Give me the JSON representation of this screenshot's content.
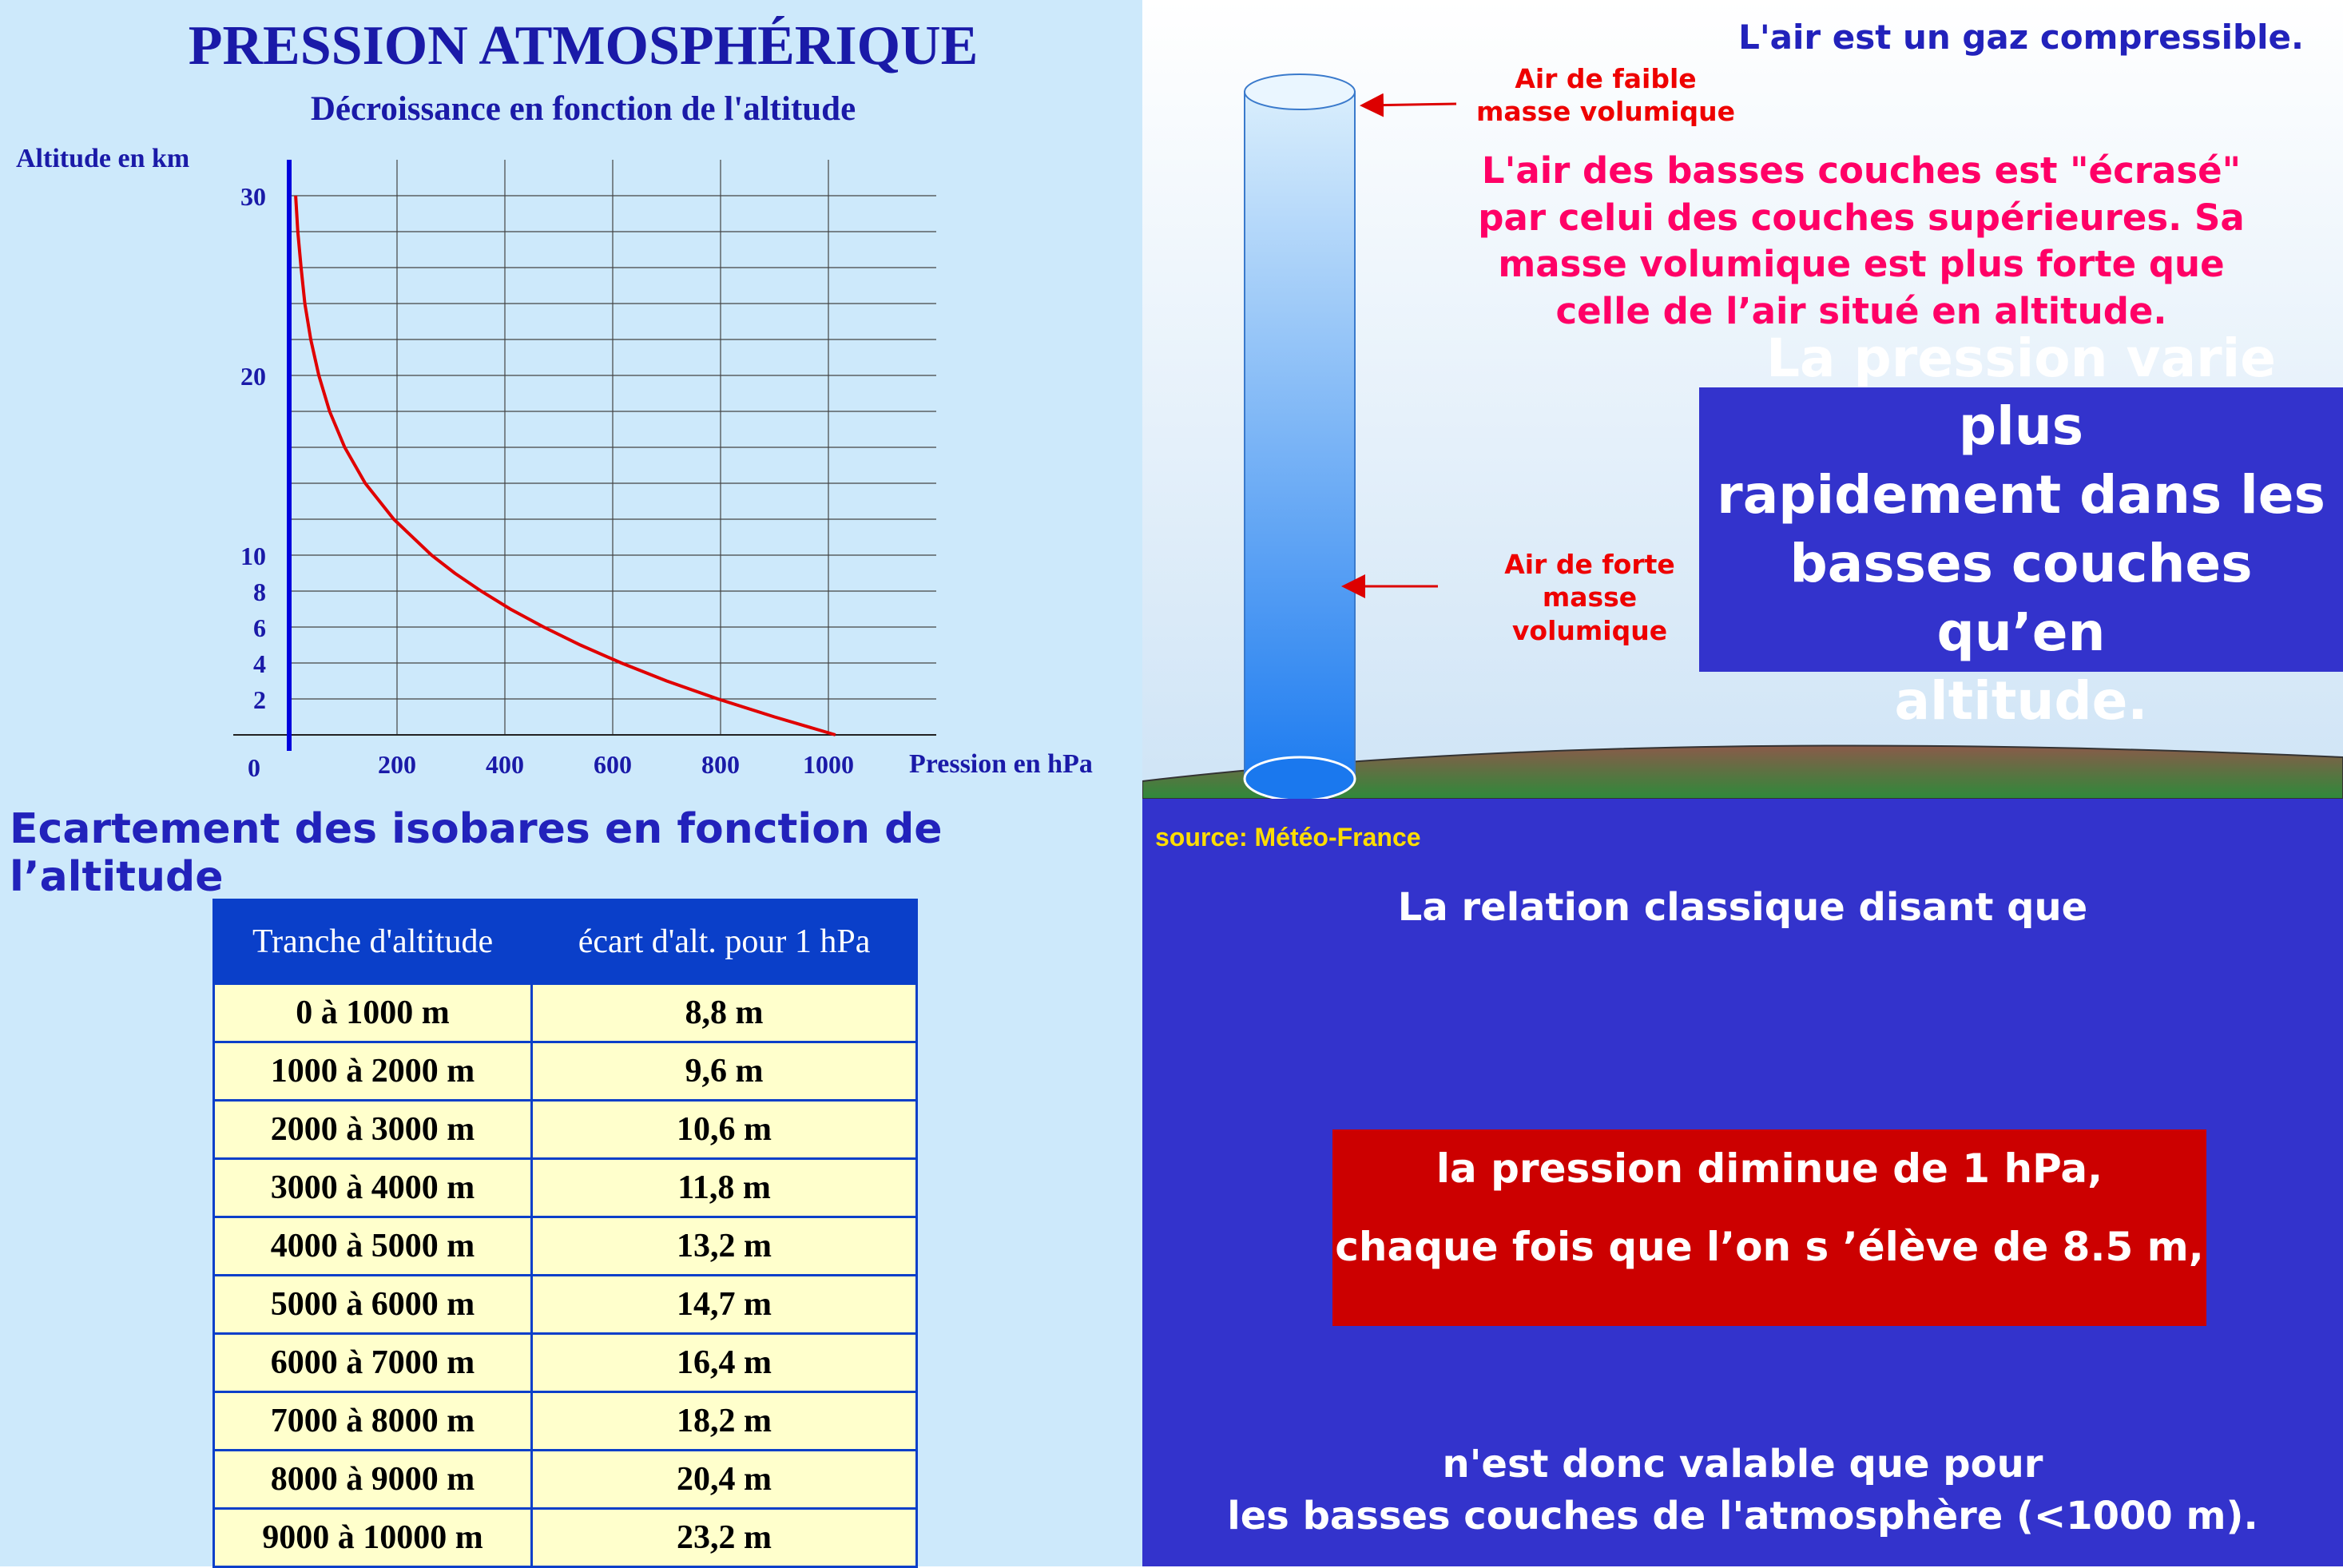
{
  "chart_header": {
    "title": "PRESSION ATMOSPHÉRIQUE",
    "subtitle": "Décroissance en fonction de l'altitude"
  },
  "chart_data": {
    "type": "line",
    "title": "Décroissance en fonction de l'altitude",
    "xlabel": "Pression en hPa",
    "ylabel": "Altitude en km",
    "xlim": [
      0,
      1200
    ],
    "ylim": [
      0,
      30
    ],
    "x_ticks": [
      "200",
      "400",
      "600",
      "800",
      "1000"
    ],
    "y_ticks": [
      "2",
      "4",
      "6",
      "8",
      "10",
      "20",
      "30"
    ],
    "origin_label": "0",
    "grid": true,
    "curve_color": "#e00000",
    "series": [
      {
        "x": [
          1013,
          900,
          795,
          700,
          616,
          540,
          472,
          410,
          356,
          307,
          264,
          194,
          141,
          103,
          75,
          55,
          40,
          29,
          22,
          16,
          12
        ],
        "y": [
          0,
          1,
          2,
          3,
          4,
          5,
          6,
          7,
          8,
          9,
          10,
          12,
          14,
          16,
          18,
          20,
          22,
          24,
          26,
          28,
          30
        ]
      }
    ]
  },
  "compressible": {
    "heading": "L'air est un gaz compressible.",
    "label_top": [
      "Air de faible",
      "masse volumique"
    ],
    "label_bottom": [
      "Air de forte",
      "masse",
      "volumique"
    ],
    "explanation": [
      "L'air des basses couches est \"écrasé\"",
      "par celui des couches supérieures. Sa",
      "masse  volumique est plus forte que",
      "celle de l’air situé en altitude."
    ],
    "box": [
      "La pression varie plus",
      "rapidement dans les",
      "basses couches qu’en",
      "altitude."
    ]
  },
  "isobars": {
    "title": "Ecartement des isobares en fonction de l’altitude",
    "headers": [
      "Tranche d'altitude",
      "écart d'alt. pour 1 hPa"
    ],
    "rows": [
      [
        "0 à 1000 m",
        "8,8 m"
      ],
      [
        "1000 à 2000 m",
        "9,6 m"
      ],
      [
        "2000 à 3000 m",
        "10,6 m"
      ],
      [
        "3000 à 4000 m",
        "11,8 m"
      ],
      [
        "4000 à 5000 m",
        "13,2 m"
      ],
      [
        "5000 à 6000 m",
        "14,7 m"
      ],
      [
        "6000 à 7000 m",
        "16,4 m"
      ],
      [
        "7000 à 8000 m",
        "18,2 m"
      ],
      [
        "8000 à 9000 m",
        "20,4 m"
      ],
      [
        "9000 à 10000 m",
        "23,2 m"
      ]
    ]
  },
  "relation": {
    "source": "source: Météo-France",
    "intro": "La relation classique disant que",
    "box_line1": "la pression diminue de 1 hPa,",
    "box_line2": "chaque fois que l’on s ’élève de 8.5 m,",
    "outro_line1": "n'est donc valable que pour",
    "outro_line2": "les basses couches de l'atmosphère (<1000 m)."
  }
}
